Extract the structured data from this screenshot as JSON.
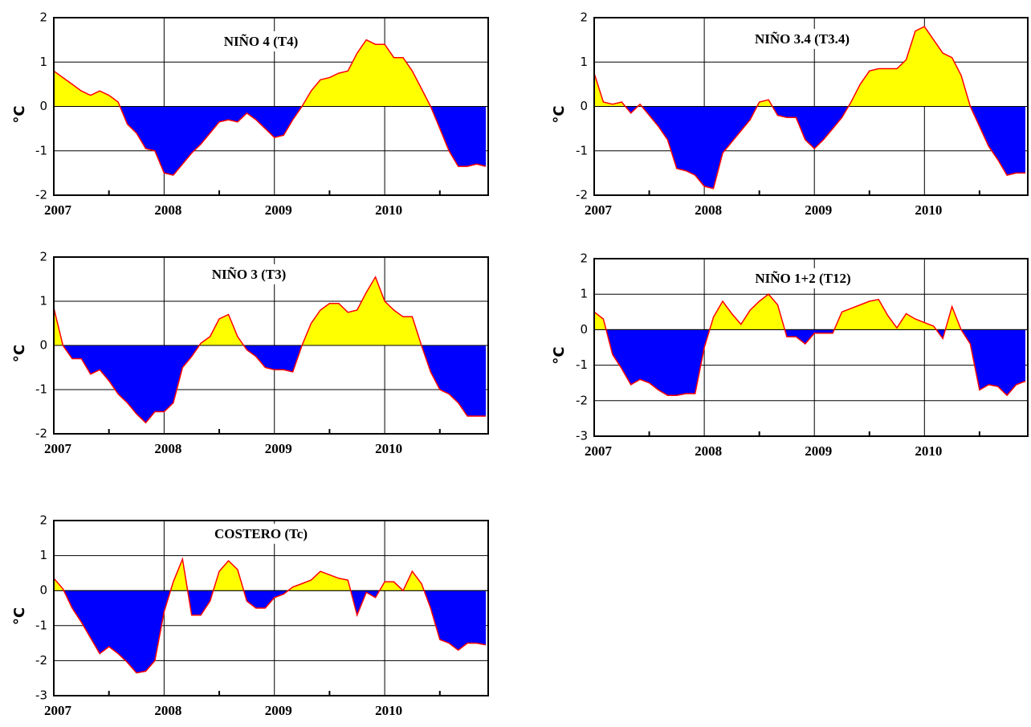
{
  "chart_data": [
    {
      "type": "area",
      "title": "NIÑO 4 (T4)",
      "ylabel": "°C",
      "categories": [
        "2007",
        null,
        null,
        null,
        null,
        null,
        null,
        null,
        null,
        null,
        null,
        null,
        "2008",
        null,
        null,
        null,
        null,
        null,
        null,
        null,
        null,
        null,
        null,
        null,
        "2009",
        null,
        null,
        null,
        null,
        null,
        null,
        null,
        null,
        null,
        null,
        null,
        "2010",
        null,
        null,
        null,
        null,
        null,
        null,
        null,
        null,
        null,
        null,
        null
      ],
      "values": [
        0.8,
        0.65,
        0.5,
        0.35,
        0.25,
        0.35,
        0.25,
        0.1,
        -0.4,
        -0.6,
        -0.95,
        -1.0,
        -1.5,
        -1.55,
        -1.3,
        -1.05,
        -0.85,
        -0.6,
        -0.35,
        -0.3,
        -0.35,
        -0.15,
        -0.3,
        -0.5,
        -0.7,
        -0.65,
        -0.3,
        0,
        0.35,
        0.6,
        0.65,
        0.75,
        0.8,
        1.2,
        1.5,
        1.4,
        1.4,
        1.1,
        1.1,
        0.8,
        0.4,
        0,
        -0.5,
        -1.0,
        -1.35,
        -1.35,
        -1.3,
        -1.35
      ],
      "ylim": [
        -2,
        2
      ],
      "yticks": [
        -2,
        -1,
        0,
        1,
        2
      ],
      "grid": true,
      "positive_color": "#ffff00",
      "negative_color": "#0000ff",
      "line_color": "#ff0000"
    },
    {
      "type": "area",
      "title": "NIÑO 3.4 (T3.4)",
      "ylabel": "°C",
      "categories": [
        "2007",
        null,
        null,
        null,
        null,
        null,
        null,
        null,
        null,
        null,
        null,
        null,
        "2008",
        null,
        null,
        null,
        null,
        null,
        null,
        null,
        null,
        null,
        null,
        null,
        "2009",
        null,
        null,
        null,
        null,
        null,
        null,
        null,
        null,
        null,
        null,
        null,
        "2010",
        null,
        null,
        null,
        null,
        null,
        null,
        null,
        null,
        null,
        null,
        null
      ],
      "values": [
        0.75,
        0.1,
        0.05,
        0.1,
        -0.15,
        0.05,
        -0.2,
        -0.45,
        -0.75,
        -1.4,
        -1.45,
        -1.55,
        -1.8,
        -1.85,
        -1.05,
        -0.8,
        -0.55,
        -0.3,
        0.1,
        0.15,
        -0.2,
        -0.25,
        -0.25,
        -0.75,
        -0.95,
        -0.75,
        -0.5,
        -0.25,
        0.1,
        0.5,
        0.8,
        0.85,
        0.85,
        0.85,
        1.05,
        1.7,
        1.8,
        1.5,
        1.2,
        1.1,
        0.7,
        0,
        -0.45,
        -0.9,
        -1.2,
        -1.55,
        -1.5,
        -1.5
      ],
      "ylim": [
        -2,
        2
      ],
      "yticks": [
        -2,
        -1,
        0,
        1,
        2
      ],
      "grid": true,
      "positive_color": "#ffff00",
      "negative_color": "#0000ff",
      "line_color": "#ff0000"
    },
    {
      "type": "area",
      "title": "NIÑO 3 (T3)",
      "ylabel": "°C",
      "categories": [
        "2007",
        null,
        null,
        null,
        null,
        null,
        null,
        null,
        null,
        null,
        null,
        null,
        "2008",
        null,
        null,
        null,
        null,
        null,
        null,
        null,
        null,
        null,
        null,
        null,
        "2009",
        null,
        null,
        null,
        null,
        null,
        null,
        null,
        null,
        null,
        null,
        null,
        "2010",
        null,
        null,
        null,
        null,
        null,
        null,
        null,
        null,
        null,
        null,
        null
      ],
      "values": [
        0.85,
        0,
        -0.3,
        -0.3,
        -0.65,
        -0.55,
        -0.8,
        -1.1,
        -1.3,
        -1.55,
        -1.75,
        -1.5,
        -1.5,
        -1.3,
        -0.5,
        -0.25,
        0.05,
        0.2,
        0.6,
        0.7,
        0.2,
        -0.1,
        -0.25,
        -0.5,
        -0.55,
        -0.55,
        -0.6,
        0,
        0.5,
        0.8,
        0.95,
        0.95,
        0.75,
        0.8,
        1.2,
        1.55,
        1.0,
        0.8,
        0.65,
        0.65,
        0,
        -0.6,
        -1.0,
        -1.1,
        -1.3,
        -1.6,
        -1.6,
        -1.6
      ],
      "ylim": [
        -2,
        2
      ],
      "yticks": [
        -2,
        -1,
        0,
        1,
        2
      ],
      "grid": true,
      "positive_color": "#ffff00",
      "negative_color": "#0000ff",
      "line_color": "#ff0000"
    },
    {
      "type": "area",
      "title": "NIÑO 1+2 (T12)",
      "ylabel": "°C",
      "categories": [
        "2007",
        null,
        null,
        null,
        null,
        null,
        null,
        null,
        null,
        null,
        null,
        null,
        "2008",
        null,
        null,
        null,
        null,
        null,
        null,
        null,
        null,
        null,
        null,
        null,
        "2009",
        null,
        null,
        null,
        null,
        null,
        null,
        null,
        null,
        null,
        null,
        null,
        "2010",
        null,
        null,
        null,
        null,
        null,
        null,
        null,
        null,
        null,
        null,
        null
      ],
      "values": [
        0.5,
        0.3,
        -0.7,
        -1.1,
        -1.55,
        -1.4,
        -1.5,
        -1.7,
        -1.85,
        -1.85,
        -1.8,
        -1.8,
        -0.5,
        0.35,
        0.8,
        0.45,
        0.15,
        0.55,
        0.8,
        1.0,
        0.7,
        -0.2,
        -0.2,
        -0.4,
        -0.1,
        -0.1,
        -0.1,
        0.5,
        0.6,
        0.7,
        0.8,
        0.85,
        0.4,
        0.05,
        0.45,
        0.3,
        0.2,
        0.1,
        -0.25,
        0.65,
        0,
        -0.4,
        -1.7,
        -1.55,
        -1.6,
        -1.85,
        -1.55,
        -1.45
      ],
      "ylim": [
        -3,
        2
      ],
      "yticks": [
        -3,
        -2,
        -1,
        0,
        1,
        2
      ],
      "grid": true,
      "positive_color": "#ffff00",
      "negative_color": "#0000ff",
      "line_color": "#ff0000"
    },
    {
      "type": "area",
      "title": "COSTERO (Tc)",
      "ylabel": "°C",
      "categories": [
        "2007",
        null,
        null,
        null,
        null,
        null,
        null,
        null,
        null,
        null,
        null,
        null,
        "2008",
        null,
        null,
        null,
        null,
        null,
        null,
        null,
        null,
        null,
        null,
        null,
        "2009",
        null,
        null,
        null,
        null,
        null,
        null,
        null,
        null,
        null,
        null,
        null,
        "2010",
        null,
        null,
        null,
        null,
        null,
        null,
        null,
        null,
        null,
        null,
        null
      ],
      "values": [
        0.35,
        0.05,
        -0.5,
        -0.9,
        -1.35,
        -1.8,
        -1.6,
        -1.8,
        -2.05,
        -2.35,
        -2.3,
        -2.0,
        -0.6,
        0.25,
        0.9,
        -0.7,
        -0.7,
        -0.3,
        0.55,
        0.85,
        0.6,
        -0.3,
        -0.5,
        -0.5,
        -0.2,
        -0.1,
        0.1,
        0.2,
        0.3,
        0.55,
        0.45,
        0.35,
        0.3,
        -0.7,
        -0.05,
        -0.2,
        0.25,
        0.25,
        0,
        0.55,
        0.2,
        -0.5,
        -1.4,
        -1.5,
        -1.7,
        -1.5,
        -1.5,
        -1.55
      ],
      "ylim": [
        -3,
        2
      ],
      "yticks": [
        -3,
        -2,
        -1,
        0,
        1,
        2
      ],
      "grid": true,
      "positive_color": "#ffff00",
      "negative_color": "#0000ff",
      "line_color": "#ff0000"
    }
  ]
}
